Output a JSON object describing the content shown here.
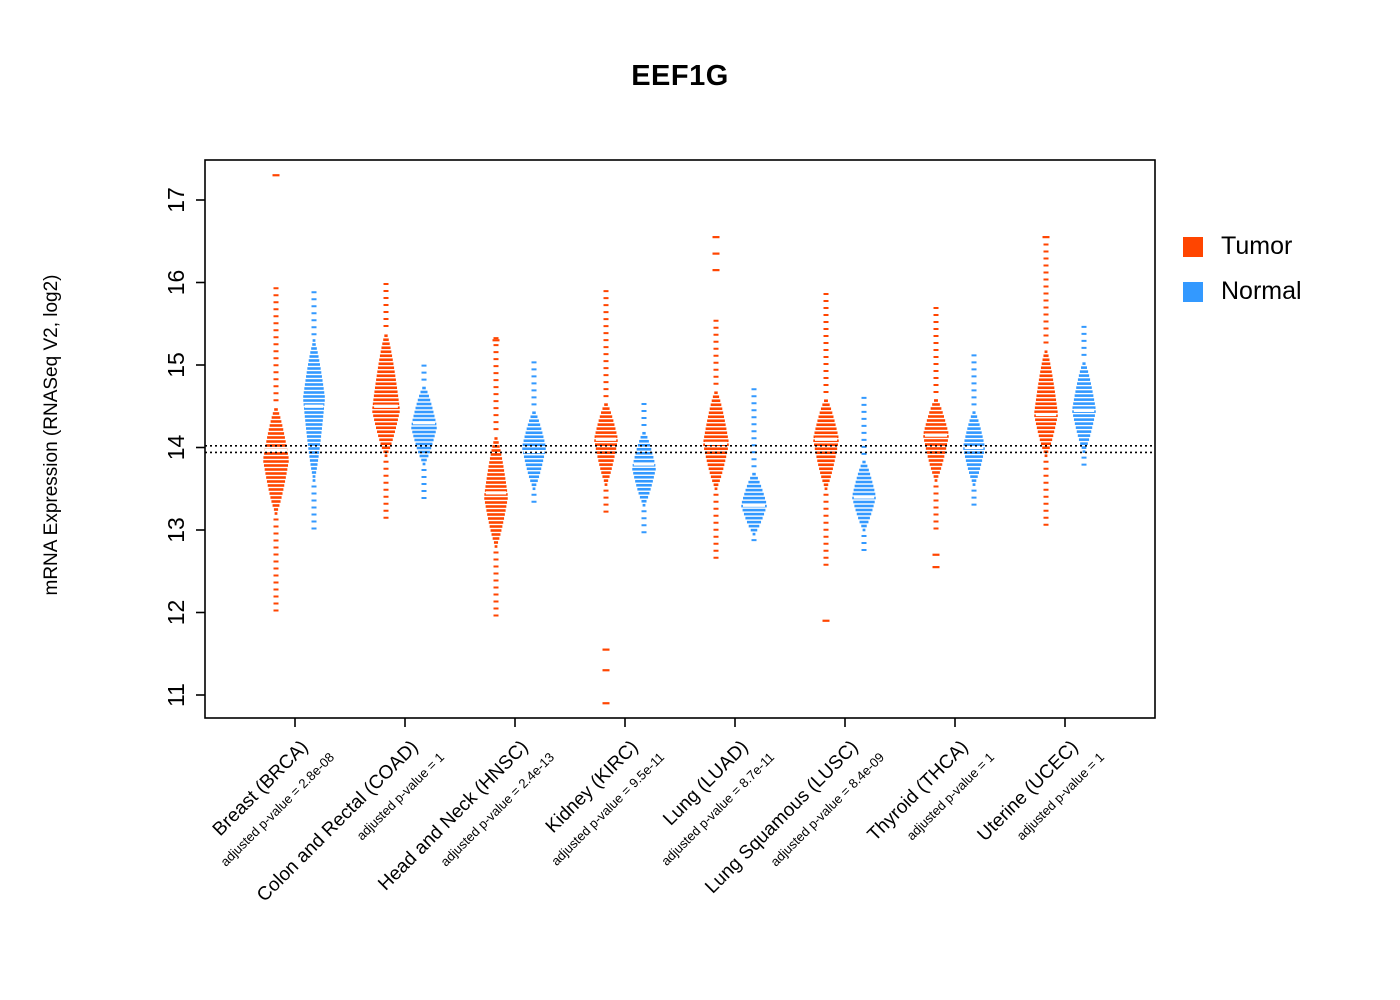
{
  "title": "EEF1G",
  "ylabel": "mRNA Expression (RNASeq V2, log2)",
  "legend": {
    "items": [
      {
        "label": "Tumor",
        "color": "#FF4500"
      },
      {
        "label": "Normal",
        "color": "#3399FF"
      }
    ]
  },
  "chart_data": {
    "type": "violin-strip",
    "title": "EEF1G",
    "ylabel": "mRNA Expression (RNASeq V2, log2)",
    "ylim": [
      10.8,
      17.5
    ],
    "yticks": [
      11,
      12,
      13,
      14,
      15,
      16,
      17
    ],
    "reference_lines": [
      14.02,
      13.94
    ],
    "legend_position": "right",
    "grid": false,
    "categories": [
      {
        "label": "Breast (BRCA)",
        "sublabel": "adjusted p-value = 2.8e-08"
      },
      {
        "label": "Colon and Rectal (COAD)",
        "sublabel": "adjusted p-value = 1"
      },
      {
        "label": "Head and Neck (HNSC)",
        "sublabel": "adjusted p-value = 2.4e-13"
      },
      {
        "label": "Kidney (KIRC)",
        "sublabel": "adjusted p-value = 9.5e-11"
      },
      {
        "label": "Lung (LUAD)",
        "sublabel": "adjusted p-value = 8.7e-11"
      },
      {
        "label": "Lung Squamous (LUSC)",
        "sublabel": "adjusted p-value = 8.4e-09"
      },
      {
        "label": "Thyroid (THCA)",
        "sublabel": "adjusted p-value = 1"
      },
      {
        "label": "Uterine (UCEC)",
        "sublabel": "adjusted p-value = 1"
      }
    ],
    "series": [
      {
        "name": "Tumor",
        "color": "#FF4500",
        "groups": [
          {
            "median": 13.97,
            "mode": 13.85,
            "dense": [
              13.2,
              14.5
            ],
            "tail": [
              12.0,
              16.0
            ],
            "outliers": [
              17.3
            ],
            "w": 13
          },
          {
            "median": 14.5,
            "mode": 14.45,
            "dense": [
              13.9,
              15.4
            ],
            "tail": [
              13.1,
              16.05
            ],
            "outliers": [],
            "w": 14
          },
          {
            "median": 13.45,
            "mode": 13.4,
            "dense": [
              12.8,
              14.15
            ],
            "tail": [
              11.95,
              15.35
            ],
            "outliers": [
              15.3
            ],
            "w": 12
          },
          {
            "median": 14.1,
            "mode": 14.1,
            "dense": [
              13.55,
              14.55
            ],
            "tail": [
              13.2,
              15.9
            ],
            "outliers": [
              11.55,
              11.3,
              10.9
            ],
            "w": 12
          },
          {
            "median": 14.05,
            "mode": 14.05,
            "dense": [
              13.5,
              14.7
            ],
            "tail": [
              12.65,
              15.55
            ],
            "outliers": [
              16.55,
              16.35,
              16.15
            ],
            "w": 13
          },
          {
            "median": 14.1,
            "mode": 14.1,
            "dense": [
              13.5,
              14.6
            ],
            "tail": [
              12.55,
              15.9
            ],
            "outliers": [
              11.9
            ],
            "w": 13
          },
          {
            "median": 14.15,
            "mode": 14.15,
            "dense": [
              13.6,
              14.6
            ],
            "tail": [
              13.0,
              15.7
            ],
            "outliers": [
              12.7,
              12.55
            ],
            "w": 13
          },
          {
            "median": 14.4,
            "mode": 14.4,
            "dense": [
              13.9,
              15.2
            ],
            "tail": [
              13.0,
              16.5
            ],
            "outliers": [
              16.55
            ],
            "w": 12
          }
        ]
      },
      {
        "name": "Normal",
        "color": "#3399FF",
        "groups": [
          {
            "median": 14.5,
            "mode": 14.6,
            "dense": [
              13.6,
              15.3
            ],
            "tail": [
              12.95,
              15.9
            ],
            "outliers": [],
            "w": 11
          },
          {
            "median": 14.3,
            "mode": 14.25,
            "dense": [
              13.8,
              14.75
            ],
            "tail": [
              13.35,
              15.05
            ],
            "outliers": [],
            "w": 13
          },
          {
            "median": 13.95,
            "mode": 14.0,
            "dense": [
              13.5,
              14.45
            ],
            "tail": [
              13.3,
              15.05
            ],
            "outliers": [],
            "w": 12
          },
          {
            "median": 13.8,
            "mode": 13.75,
            "dense": [
              13.3,
              14.2
            ],
            "tail": [
              12.95,
              14.55
            ],
            "outliers": [],
            "w": 12
          },
          {
            "median": 13.3,
            "mode": 13.3,
            "dense": [
              12.95,
              13.7
            ],
            "tail": [
              12.85,
              14.75
            ],
            "outliers": [],
            "w": 13
          },
          {
            "median": 13.4,
            "mode": 13.4,
            "dense": [
              13.0,
              13.85
            ],
            "tail": [
              12.75,
              14.65
            ],
            "outliers": [],
            "w": 12
          },
          {
            "median": 14.0,
            "mode": 14.0,
            "dense": [
              13.55,
              14.45
            ],
            "tail": [
              13.3,
              15.15
            ],
            "outliers": [],
            "w": 11
          },
          {
            "median": 14.45,
            "mode": 14.45,
            "dense": [
              13.95,
              15.05
            ],
            "tail": [
              13.75,
              15.5
            ],
            "outliers": [],
            "w": 12
          }
        ]
      }
    ]
  }
}
